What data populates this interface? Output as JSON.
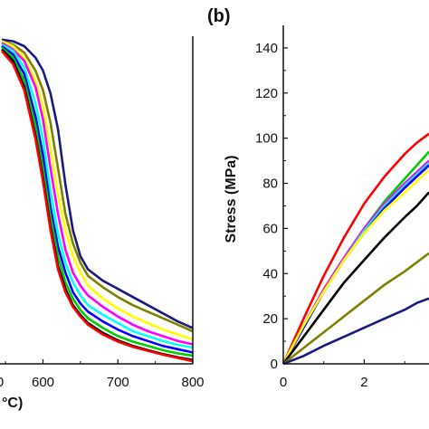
{
  "chart_data": [
    {
      "panel": "a",
      "type": "line",
      "xlim": [
        545,
        800
      ],
      "ylim": [
        0,
        1
      ],
      "x_ticks": [
        "600",
        "700",
        "800"
      ],
      "x_tick_partial": "0",
      "xlabel_partial": "°C)",
      "grid": false,
      "series": [
        {
          "color": "#1a1a80",
          "x": [
            545,
            560,
            575,
            590,
            600,
            610,
            620,
            630,
            640,
            650,
            660,
            680,
            700,
            720,
            740,
            760,
            780,
            800
          ],
          "y": [
            0.995,
            0.99,
            0.975,
            0.94,
            0.9,
            0.83,
            0.72,
            0.55,
            0.41,
            0.33,
            0.29,
            0.255,
            0.23,
            0.205,
            0.18,
            0.155,
            0.13,
            0.11
          ]
        },
        {
          "color": "#808000",
          "x": [
            545,
            560,
            575,
            590,
            600,
            610,
            620,
            630,
            640,
            650,
            660,
            680,
            700,
            720,
            740,
            760,
            780,
            800
          ],
          "y": [
            0.99,
            0.98,
            0.955,
            0.9,
            0.84,
            0.74,
            0.6,
            0.46,
            0.37,
            0.31,
            0.27,
            0.235,
            0.205,
            0.18,
            0.16,
            0.14,
            0.12,
            0.1
          ]
        },
        {
          "color": "#ffff00",
          "x": [
            545,
            560,
            575,
            590,
            600,
            610,
            620,
            630,
            640,
            650,
            660,
            680,
            700,
            720,
            740,
            760,
            780,
            800
          ],
          "y": [
            0.99,
            0.975,
            0.94,
            0.87,
            0.79,
            0.66,
            0.52,
            0.41,
            0.33,
            0.28,
            0.24,
            0.2,
            0.17,
            0.145,
            0.125,
            0.105,
            0.09,
            0.075
          ]
        },
        {
          "color": "#ff00ff",
          "x": [
            545,
            560,
            575,
            590,
            600,
            610,
            620,
            630,
            640,
            650,
            660,
            680,
            700,
            720,
            740,
            760,
            780,
            800
          ],
          "y": [
            0.985,
            0.965,
            0.93,
            0.85,
            0.75,
            0.6,
            0.46,
            0.35,
            0.28,
            0.24,
            0.21,
            0.175,
            0.145,
            0.12,
            0.1,
            0.085,
            0.07,
            0.06
          ]
        },
        {
          "color": "#00ffff",
          "x": [
            545,
            560,
            575,
            590,
            600,
            610,
            620,
            630,
            640,
            650,
            660,
            680,
            700,
            720,
            740,
            760,
            780,
            800
          ],
          "y": [
            0.98,
            0.96,
            0.91,
            0.8,
            0.69,
            0.53,
            0.4,
            0.31,
            0.25,
            0.21,
            0.18,
            0.15,
            0.125,
            0.1,
            0.085,
            0.07,
            0.058,
            0.05
          ]
        },
        {
          "color": "#0000ff",
          "x": [
            545,
            560,
            575,
            590,
            600,
            610,
            620,
            630,
            640,
            650,
            660,
            680,
            700,
            720,
            740,
            760,
            780,
            800
          ],
          "y": [
            0.975,
            0.95,
            0.89,
            0.76,
            0.64,
            0.48,
            0.36,
            0.28,
            0.22,
            0.185,
            0.16,
            0.13,
            0.105,
            0.085,
            0.07,
            0.055,
            0.045,
            0.035
          ]
        },
        {
          "color": "#00cc00",
          "x": [
            545,
            560,
            575,
            590,
            600,
            610,
            620,
            630,
            640,
            650,
            660,
            680,
            700,
            720,
            740,
            760,
            780,
            800
          ],
          "y": [
            0.97,
            0.94,
            0.87,
            0.73,
            0.6,
            0.45,
            0.33,
            0.25,
            0.2,
            0.165,
            0.14,
            0.11,
            0.085,
            0.068,
            0.055,
            0.042,
            0.032,
            0.025
          ]
        },
        {
          "color": "#000000",
          "x": [
            545,
            560,
            575,
            590,
            600,
            610,
            620,
            630,
            640,
            650,
            660,
            680,
            700,
            720,
            740,
            760,
            780,
            800
          ],
          "y": [
            0.965,
            0.93,
            0.85,
            0.7,
            0.57,
            0.42,
            0.3,
            0.23,
            0.18,
            0.15,
            0.125,
            0.095,
            0.072,
            0.055,
            0.042,
            0.03,
            0.02,
            0.012
          ]
        },
        {
          "color": "#ff0000",
          "x": [
            545,
            560,
            575,
            590,
            600,
            610,
            620,
            630,
            640,
            650,
            660,
            680,
            700,
            720,
            740,
            760,
            780,
            800
          ],
          "y": [
            0.96,
            0.92,
            0.84,
            0.69,
            0.56,
            0.41,
            0.29,
            0.22,
            0.175,
            0.145,
            0.12,
            0.09,
            0.068,
            0.052,
            0.04,
            0.028,
            0.018,
            0.008
          ]
        }
      ]
    },
    {
      "panel": "b",
      "type": "line",
      "panel_label": "(b)",
      "ylabel": "Stress (MPa)",
      "xlim": [
        0,
        3.6
      ],
      "ylim": [
        0,
        150
      ],
      "x_ticks": [
        "0",
        "2"
      ],
      "y_ticks": [
        "0",
        "20",
        "40",
        "60",
        "80",
        "100",
        "120",
        "140"
      ],
      "grid": false,
      "series": [
        {
          "color": "#ff0000",
          "x": [
            0,
            0.5,
            1,
            1.5,
            2,
            2.5,
            3,
            3.3,
            3.6
          ],
          "y": [
            0,
            20,
            39,
            56,
            71,
            83,
            93,
            98,
            102
          ]
        },
        {
          "color": "#00cc00",
          "x": [
            0,
            0.5,
            1,
            1.5,
            2,
            2.5,
            3,
            3.3,
            3.6
          ],
          "y": [
            0,
            17,
            33,
            47,
            60,
            72,
            82,
            88,
            94
          ]
        },
        {
          "color": "#ff00ff",
          "x": [
            0,
            0.5,
            1,
            1.5,
            2,
            2.5,
            3,
            3.3,
            3.6
          ],
          "y": [
            0,
            17,
            33,
            47,
            60,
            71,
            80,
            85,
            90
          ]
        },
        {
          "color": "#00ffff",
          "x": [
            0,
            0.5,
            1,
            1.5,
            2,
            2.5,
            3,
            3.3,
            3.6
          ],
          "y": [
            0,
            16,
            32,
            46,
            59,
            70,
            79,
            84,
            89
          ]
        },
        {
          "color": "#0000ff",
          "x": [
            0,
            0.5,
            1,
            1.5,
            2,
            2.5,
            3,
            3.3,
            3.6
          ],
          "y": [
            0,
            16,
            32,
            46,
            58,
            69,
            78,
            83,
            88
          ]
        },
        {
          "color": "#ffff00",
          "x": [
            0,
            0.5,
            1,
            1.5,
            2,
            2.5,
            3,
            3.3,
            3.6
          ],
          "y": [
            0,
            17,
            32,
            46,
            58,
            68,
            76,
            81,
            86
          ]
        },
        {
          "color": "#000000",
          "x": [
            0,
            0.5,
            1,
            1.5,
            2,
            2.5,
            3,
            3.3,
            3.6
          ],
          "y": [
            0,
            12,
            24,
            36,
            46,
            56,
            65,
            70,
            76
          ]
        },
        {
          "color": "#808000",
          "x": [
            0,
            0.5,
            1,
            1.5,
            2,
            2.5,
            3,
            3.3,
            3.6
          ],
          "y": [
            0,
            7,
            14,
            21,
            28,
            35,
            41,
            45,
            49
          ]
        },
        {
          "color": "#1a1a80",
          "x": [
            0,
            0.5,
            1,
            1.5,
            2,
            2.5,
            3,
            3.3,
            3.6
          ],
          "y": [
            0,
            3.5,
            8,
            12,
            16,
            20,
            24,
            27,
            29
          ]
        }
      ]
    }
  ]
}
